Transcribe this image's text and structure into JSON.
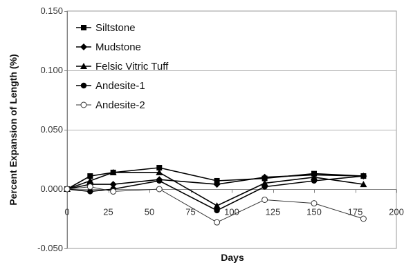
{
  "chart_data": {
    "type": "line",
    "xlabel": "Days",
    "ylabel": "Percent Expansion of Length (%)",
    "xlim": [
      0,
      200
    ],
    "ylim": [
      -0.05,
      0.15
    ],
    "xticks": [
      0,
      25,
      50,
      75,
      100,
      125,
      150,
      175,
      200
    ],
    "xtick_labels": [
      "0",
      "25",
      "50",
      "75",
      "100",
      "125",
      "150",
      "175",
      "200"
    ],
    "yticks": [
      -0.05,
      0,
      0.05,
      0.1,
      0.15
    ],
    "ytick_labels": [
      "-0.050",
      "0.000",
      "0.050",
      "0.100",
      "0.150"
    ],
    "grid": "horizontal",
    "legend_position": "top-left",
    "series": [
      {
        "name": "Siltstone",
        "marker": "square",
        "points": [
          [
            0,
            0.0
          ],
          [
            14,
            0.011
          ],
          [
            28,
            0.014
          ],
          [
            56,
            0.018
          ],
          [
            91,
            0.007
          ],
          [
            120,
            0.009
          ],
          [
            150,
            0.013
          ],
          [
            180,
            0.011
          ]
        ]
      },
      {
        "name": "Mudstone",
        "marker": "diamond",
        "points": [
          [
            0,
            0.0
          ],
          [
            14,
            0.004
          ],
          [
            28,
            0.004
          ],
          [
            56,
            0.008
          ],
          [
            91,
            0.004
          ],
          [
            120,
            0.01
          ],
          [
            150,
            0.012
          ],
          [
            180,
            0.011
          ]
        ]
      },
      {
        "name": "Felsic Vitric Tuff",
        "marker": "triangle",
        "points": [
          [
            0,
            0.0
          ],
          [
            14,
            0.007
          ],
          [
            28,
            0.014
          ],
          [
            56,
            0.014
          ],
          [
            91,
            -0.014
          ],
          [
            120,
            0.005
          ],
          [
            150,
            0.01
          ],
          [
            180,
            0.004
          ]
        ]
      },
      {
        "name": "Andesite-1",
        "marker": "circle",
        "points": [
          [
            0,
            0.0
          ],
          [
            14,
            -0.002
          ],
          [
            28,
            0.0
          ],
          [
            56,
            0.007
          ],
          [
            91,
            -0.018
          ],
          [
            120,
            0.002
          ],
          [
            150,
            0.007
          ],
          [
            180,
            0.011
          ]
        ]
      },
      {
        "name": "Andesite-2",
        "marker": "open-circle",
        "points": [
          [
            0,
            0.0
          ],
          [
            14,
            0.002
          ],
          [
            28,
            -0.002
          ],
          [
            56,
            0.0
          ],
          [
            91,
            -0.028
          ],
          [
            120,
            -0.009
          ],
          [
            150,
            -0.012
          ],
          [
            180,
            -0.025
          ]
        ]
      }
    ]
  }
}
